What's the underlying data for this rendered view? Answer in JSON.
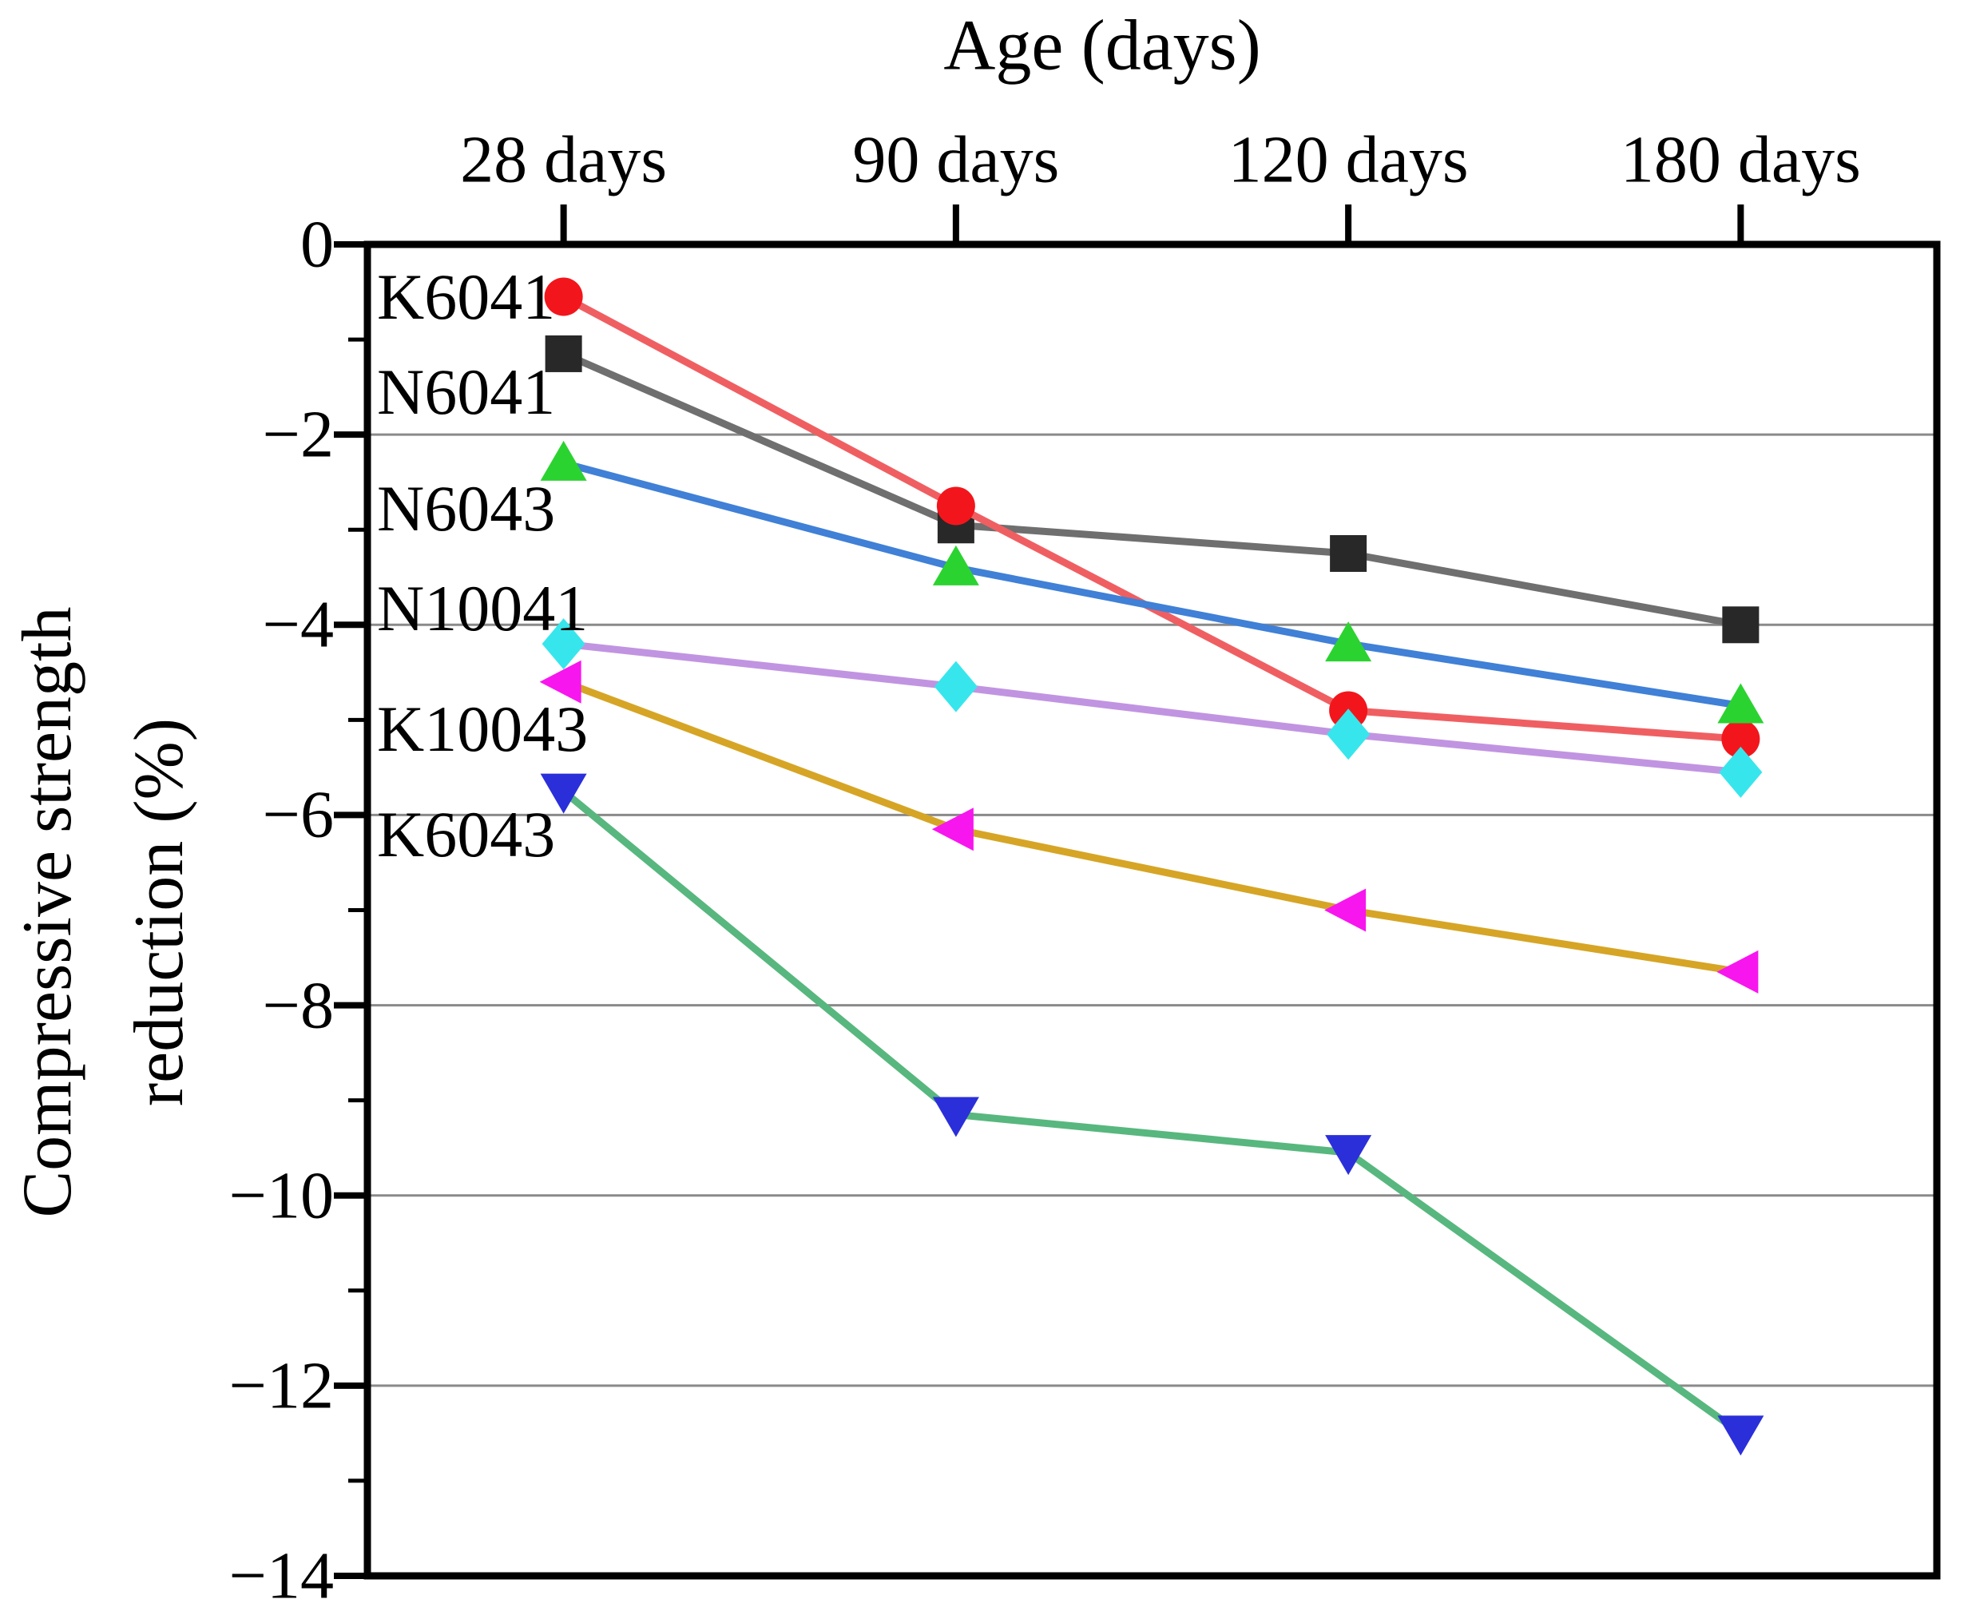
{
  "title": {
    "text": "Age (days)"
  },
  "y_axis_label": {
    "line1": "Compressive strength",
    "line2": "reduction (%)"
  },
  "x_tick_labels": [
    "28 days",
    "90 days",
    "120 days",
    "180 days"
  ],
  "y_tick_labels": [
    "0",
    "−2",
    "−4",
    "−6",
    "−8",
    "−10",
    "−12",
    "−14"
  ],
  "chart_data": {
    "type": "line",
    "title": "Age (days)",
    "xlabel": "Age (days)",
    "ylabel": "Compressive strength reduction (%)",
    "x_axis_position": "top",
    "categories": [
      "28 days",
      "90 days",
      "120 days",
      "180 days"
    ],
    "ylim": [
      -14,
      0
    ],
    "y_major_tick_step": 2,
    "y_minor_tick_step": 1,
    "grid": "horizontal-major",
    "legend_position": "inline-labels-at-first-point",
    "series": [
      {
        "name": "K6041",
        "values": [
          -0.55,
          -2.75,
          -4.9,
          -5.2
        ],
        "line_color": "#ef5f62",
        "marker": "circle",
        "marker_color": "#f2161c"
      },
      {
        "name": "N6041",
        "values": [
          -1.15,
          -2.95,
          -3.25,
          -4.0
        ],
        "line_color": "#6f6f6f",
        "marker": "square",
        "marker_color": "#282828"
      },
      {
        "name": "N6043",
        "values": [
          -2.3,
          -3.4,
          -4.2,
          -4.85
        ],
        "line_color": "#4080d6",
        "marker": "triangle-up",
        "marker_color": "#2bd330"
      },
      {
        "name": "N10041",
        "values": [
          -4.2,
          -4.65,
          -5.15,
          -5.55
        ],
        "line_color": "#c194e1",
        "marker": "diamond",
        "marker_color": "#37e6ec"
      },
      {
        "name": "K10043",
        "values": [
          -4.6,
          -6.15,
          -7.0,
          -7.65
        ],
        "line_color": "#d6a526",
        "marker": "triangle-left",
        "marker_color": "#f816ee"
      },
      {
        "name": "K6043",
        "values": [
          -5.75,
          -9.15,
          -9.55,
          -12.5
        ],
        "line_color": "#58b77e",
        "marker": "triangle-down",
        "marker_color": "#2b2fd9"
      }
    ]
  },
  "colors": {
    "background": "#ffffff",
    "axis": "#000000",
    "grid": "#8a8a8a",
    "text": "#000000"
  }
}
